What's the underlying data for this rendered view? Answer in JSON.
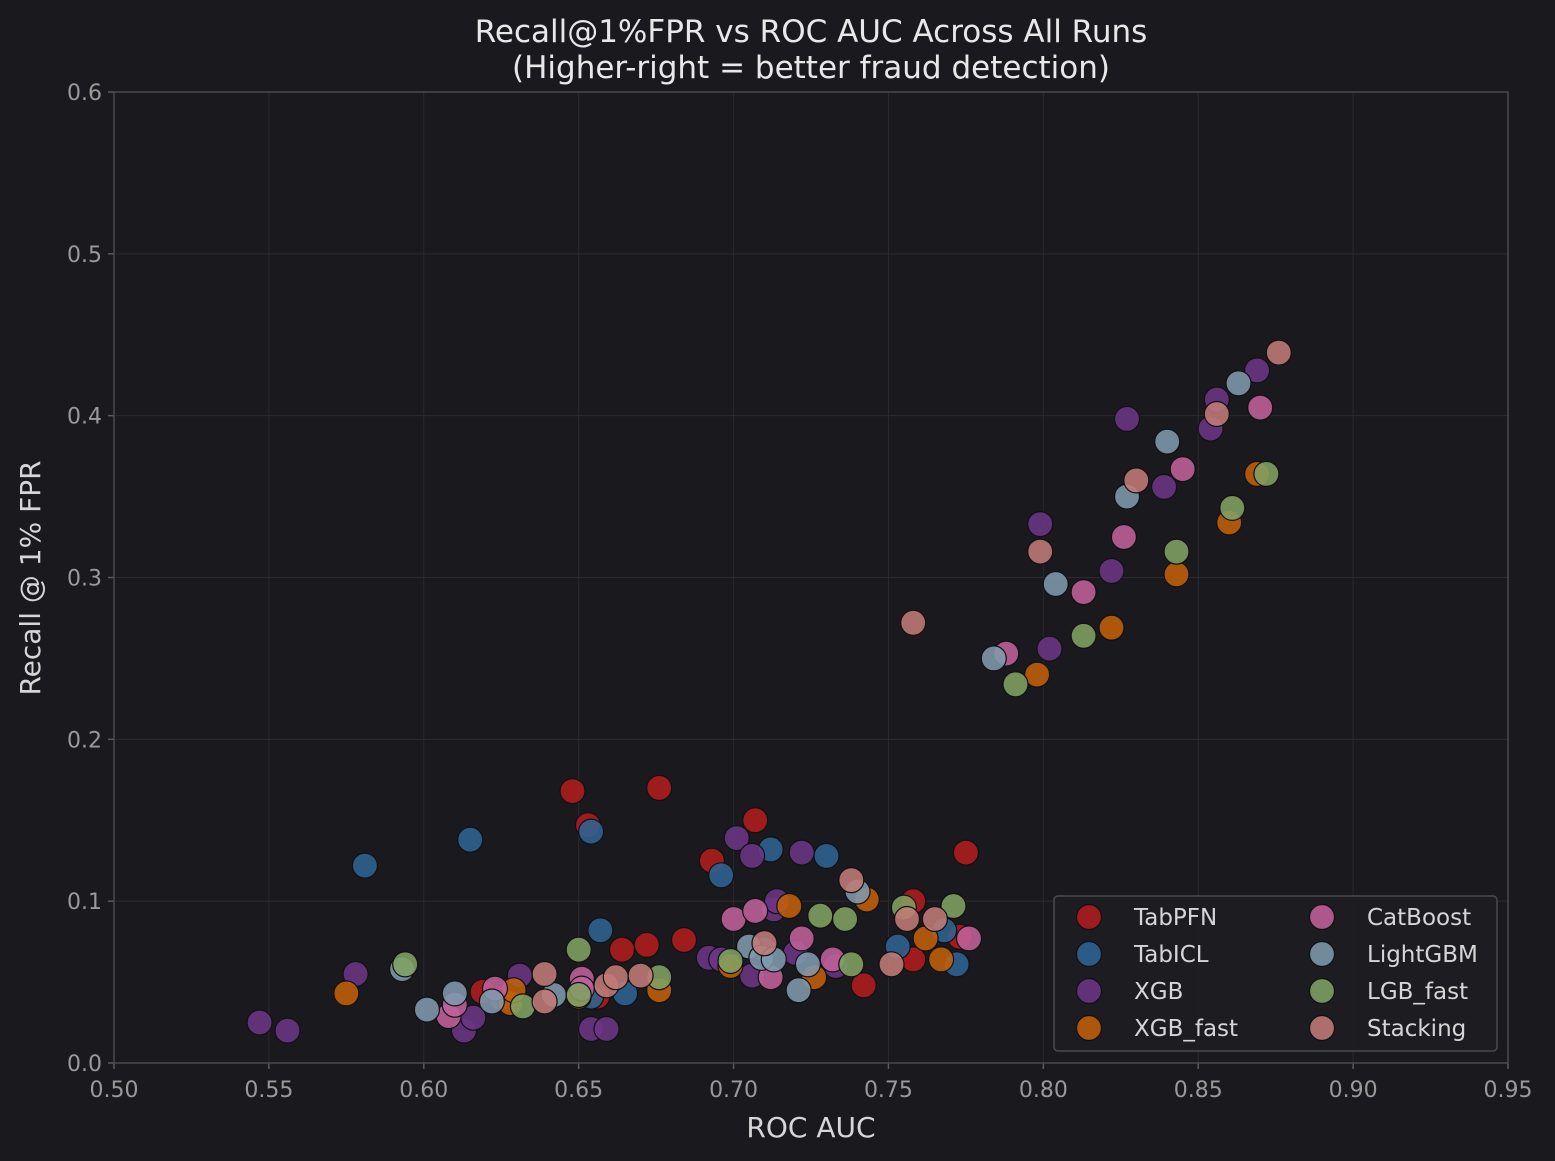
{
  "chart_data": {
    "type": "scatter",
    "title": "Recall@1%FPR vs ROC AUC Across All Runs",
    "subtitle": "(Higher-right = better fraud detection)",
    "xlabel": "ROC AUC",
    "ylabel": "Recall @ 1% FPR",
    "xlim": [
      0.5,
      0.95
    ],
    "ylim": [
      0.0,
      0.6
    ],
    "xticks": [
      "0.50",
      "0.55",
      "0.60",
      "0.65",
      "0.70",
      "0.75",
      "0.80",
      "0.85",
      "0.90",
      "0.95"
    ],
    "yticks": [
      "0.0",
      "0.1",
      "0.2",
      "0.3",
      "0.4",
      "0.5",
      "0.6"
    ],
    "grid": true,
    "legend_position": "lower-right",
    "legend_columns": 2,
    "series": [
      {
        "name": "TabPFN",
        "color": "#b01c1c",
        "points": [
          [
            0.648,
            0.168
          ],
          [
            0.676,
            0.17
          ],
          [
            0.653,
            0.147
          ],
          [
            0.707,
            0.15
          ],
          [
            0.693,
            0.125
          ],
          [
            0.775,
            0.13
          ],
          [
            0.619,
            0.044
          ],
          [
            0.664,
            0.07
          ],
          [
            0.672,
            0.073
          ],
          [
            0.684,
            0.076
          ],
          [
            0.742,
            0.048
          ],
          [
            0.758,
            0.1
          ],
          [
            0.758,
            0.064
          ],
          [
            0.773,
            0.078
          ],
          [
            0.656,
            0.041
          ],
          [
            0.625,
            0.04
          ]
        ]
      },
      {
        "name": "TabICL",
        "color": "#2e6494",
        "points": [
          [
            0.581,
            0.122
          ],
          [
            0.615,
            0.138
          ],
          [
            0.654,
            0.143
          ],
          [
            0.712,
            0.132
          ],
          [
            0.73,
            0.128
          ],
          [
            0.696,
            0.116
          ],
          [
            0.657,
            0.082
          ],
          [
            0.665,
            0.043
          ],
          [
            0.753,
            0.072
          ],
          [
            0.772,
            0.061
          ],
          [
            0.768,
            0.082
          ],
          [
            0.654,
            0.041
          ],
          [
            0.71,
            0.07
          ]
        ]
      },
      {
        "name": "XGB",
        "color": "#6b3585",
        "points": [
          [
            0.547,
            0.025
          ],
          [
            0.556,
            0.02
          ],
          [
            0.578,
            0.055
          ],
          [
            0.613,
            0.02
          ],
          [
            0.616,
            0.028
          ],
          [
            0.631,
            0.054
          ],
          [
            0.654,
            0.021
          ],
          [
            0.659,
            0.021
          ],
          [
            0.692,
            0.065
          ],
          [
            0.696,
            0.064
          ],
          [
            0.701,
            0.139
          ],
          [
            0.706,
            0.128
          ],
          [
            0.706,
            0.054
          ],
          [
            0.713,
            0.095
          ],
          [
            0.714,
            0.1
          ],
          [
            0.722,
            0.13
          ],
          [
            0.733,
            0.06
          ],
          [
            0.72,
            0.068
          ],
          [
            0.799,
            0.333
          ],
          [
            0.802,
            0.256
          ],
          [
            0.822,
            0.304
          ],
          [
            0.827,
            0.398
          ],
          [
            0.839,
            0.356
          ],
          [
            0.854,
            0.392
          ],
          [
            0.856,
            0.41
          ],
          [
            0.869,
            0.428
          ]
        ]
      },
      {
        "name": "XGB_fast",
        "color": "#c2600a",
        "points": [
          [
            0.575,
            0.043
          ],
          [
            0.628,
            0.037
          ],
          [
            0.629,
            0.045
          ],
          [
            0.65,
            0.041
          ],
          [
            0.676,
            0.045
          ],
          [
            0.699,
            0.06
          ],
          [
            0.718,
            0.097
          ],
          [
            0.726,
            0.053
          ],
          [
            0.743,
            0.101
          ],
          [
            0.762,
            0.077
          ],
          [
            0.767,
            0.064
          ],
          [
            0.798,
            0.24
          ],
          [
            0.822,
            0.269
          ],
          [
            0.843,
            0.302
          ],
          [
            0.86,
            0.334
          ],
          [
            0.869,
            0.364
          ]
        ]
      },
      {
        "name": "CatBoost",
        "color": "#c0619b",
        "points": [
          [
            0.608,
            0.029
          ],
          [
            0.61,
            0.036
          ],
          [
            0.623,
            0.046
          ],
          [
            0.651,
            0.052
          ],
          [
            0.651,
            0.046
          ],
          [
            0.7,
            0.089
          ],
          [
            0.707,
            0.094
          ],
          [
            0.712,
            0.053
          ],
          [
            0.722,
            0.077
          ],
          [
            0.732,
            0.064
          ],
          [
            0.776,
            0.077
          ],
          [
            0.788,
            0.253
          ],
          [
            0.813,
            0.291
          ],
          [
            0.826,
            0.325
          ],
          [
            0.845,
            0.367
          ],
          [
            0.87,
            0.405
          ]
        ]
      },
      {
        "name": "LightGBM",
        "color": "#7f9aae",
        "points": [
          [
            0.593,
            0.058
          ],
          [
            0.601,
            0.033
          ],
          [
            0.61,
            0.043
          ],
          [
            0.622,
            0.038
          ],
          [
            0.642,
            0.042
          ],
          [
            0.705,
            0.072
          ],
          [
            0.709,
            0.065
          ],
          [
            0.713,
            0.064
          ],
          [
            0.721,
            0.045
          ],
          [
            0.724,
            0.061
          ],
          [
            0.74,
            0.106
          ],
          [
            0.784,
            0.25
          ],
          [
            0.804,
            0.296
          ],
          [
            0.827,
            0.35
          ],
          [
            0.84,
            0.384
          ],
          [
            0.863,
            0.42
          ]
        ]
      },
      {
        "name": "LGB_fast",
        "color": "#7fa262",
        "points": [
          [
            0.594,
            0.061
          ],
          [
            0.632,
            0.035
          ],
          [
            0.65,
            0.07
          ],
          [
            0.65,
            0.042
          ],
          [
            0.676,
            0.053
          ],
          [
            0.699,
            0.063
          ],
          [
            0.728,
            0.091
          ],
          [
            0.736,
            0.089
          ],
          [
            0.738,
            0.061
          ],
          [
            0.755,
            0.096
          ],
          [
            0.771,
            0.097
          ],
          [
            0.791,
            0.234
          ],
          [
            0.813,
            0.264
          ],
          [
            0.843,
            0.316
          ],
          [
            0.861,
            0.343
          ],
          [
            0.872,
            0.364
          ]
        ]
      },
      {
        "name": "Stacking",
        "color": "#c27b76",
        "points": [
          [
            0.639,
            0.055
          ],
          [
            0.639,
            0.038
          ],
          [
            0.659,
            0.048
          ],
          [
            0.662,
            0.053
          ],
          [
            0.67,
            0.054
          ],
          [
            0.71,
            0.074
          ],
          [
            0.738,
            0.113
          ],
          [
            0.751,
            0.061
          ],
          [
            0.756,
            0.089
          ],
          [
            0.765,
            0.089
          ],
          [
            0.758,
            0.272
          ],
          [
            0.799,
            0.316
          ],
          [
            0.83,
            0.36
          ],
          [
            0.856,
            0.401
          ],
          [
            0.876,
            0.439
          ]
        ]
      }
    ]
  }
}
